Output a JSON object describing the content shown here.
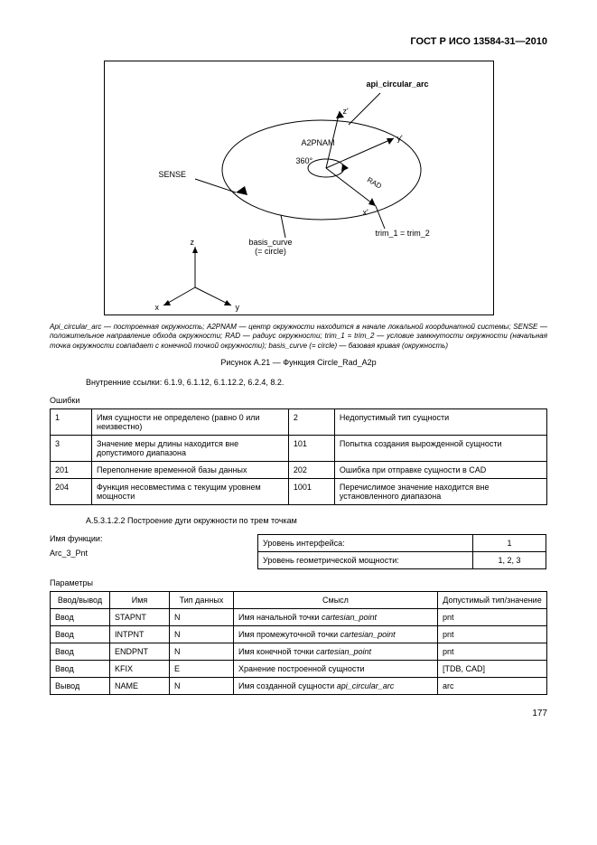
{
  "header": "ГОСТ Р ИСО 13584-31—2010",
  "figure": {
    "api_label": "api_circular_arc",
    "a2pnam": "A2PNAM",
    "angle": "360°",
    "sense": "SENSE",
    "basis": "basis_curve\n(= circle)",
    "trim": "trim_1 = trim_2",
    "rad": "RAD",
    "axes": {
      "x": "x'",
      "y": "y'",
      "z": "z'"
    },
    "world_axes": {
      "x": "x",
      "y": "y",
      "z": "z"
    }
  },
  "caption_italic": "Api_circular_arc — построенная окружность; A2PNAM — центр окружности находится в начале локальной координатной системы; SENSE — положительное направление обхода окружности; RAD — радиус окружности; trim_1 = trim_2 — условие замкнутости окружности (начальная точка окружности совпадает с конечной точкой окружности); basis_curve (= circle) — базовая кривая (окружность)",
  "figure_caption": "Рисунок А.21 — Функция Circle_Rad_A2p",
  "internal_refs": "Внутренние ссылки: 6.1.9, 6.1.12, 6.1.12.2, 6.2.4, 8.2.",
  "errors_label": "Ошибки",
  "errors": [
    {
      "c1": "1",
      "d1": "Имя сущности не определено (равно 0 или неизвестно)",
      "c2": "2",
      "d2": "Недопустимый тип сущности"
    },
    {
      "c1": "3",
      "d1": "Значение меры длины находится вне допустимого диапазона",
      "c2": "101",
      "d2": "Попытка создания вырожденной сущности"
    },
    {
      "c1": "201",
      "d1": "Переполнение временной базы данных",
      "c2": "202",
      "d2": "Ошибка при отправке сущности в CAD"
    },
    {
      "c1": "204",
      "d1": "Функция несовместима с текущим уровнем мощности",
      "c2": "1001",
      "d2": "Перечислимое значение находится вне установленного диапазона"
    }
  ],
  "subsection": "А.5.3.1.2.2 Построение дуги окружности по трем точкам",
  "func_name_label": "Имя функции:",
  "func_name": "Arc_3_Pnt",
  "iface": [
    {
      "l": "Уровень интерфейса:",
      "v": "1"
    },
    {
      "l": "Уровень геометрической мощности:",
      "v": "1, 2, 3"
    }
  ],
  "params_label": "Параметры",
  "params_header": {
    "io": "Ввод/вывод",
    "name": "Имя",
    "type": "Тип данных",
    "meaning": "Смысл",
    "allowed": "Допустимый тип/значение"
  },
  "params": [
    {
      "io": "Ввод",
      "name": "STAPNT",
      "type": "N",
      "meaning": "Имя начальной точки ",
      "ital": "cartesian_point",
      "allowed": "pnt"
    },
    {
      "io": "Ввод",
      "name": "INTPNT",
      "type": "N",
      "meaning": "Имя промежуточной точки ",
      "ital": "cartesian_point",
      "allowed": "pnt"
    },
    {
      "io": "Ввод",
      "name": "ENDPNT",
      "type": "N",
      "meaning": "Имя конечной точки ",
      "ital": "cartesian_point",
      "allowed": "pnt"
    },
    {
      "io": "Ввод",
      "name": "KFIX",
      "type": "E",
      "meaning": "Хранение построенной сущности",
      "ital": "",
      "allowed": "[TDB, CAD]"
    },
    {
      "io": "Вывод",
      "name": "NAME",
      "type": "N",
      "meaning": "Имя созданной сущности ",
      "ital": "api_circular_arc",
      "allowed": "arc"
    }
  ],
  "page_num": "177"
}
